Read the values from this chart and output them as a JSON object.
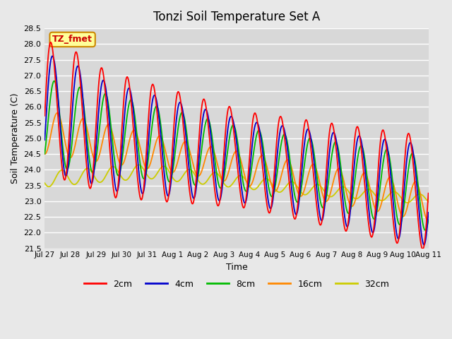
{
  "title": "Tonzi Soil Temperature Set A",
  "xlabel": "Time",
  "ylabel": "Soil Temperature (C)",
  "ylim": [
    21.5,
    28.5
  ],
  "background_color": "#e8e8e8",
  "plot_bg_color": "#d8d8d8",
  "grid_color": "#ffffff",
  "annotation_text": "TZ_fmet",
  "annotation_bg": "#ffff99",
  "annotation_border": "#cc8800",
  "annotation_text_color": "#cc0000",
  "legend_labels": [
    "2cm",
    "4cm",
    "8cm",
    "16cm",
    "32cm"
  ],
  "line_colors": [
    "#ff0000",
    "#0000cc",
    "#00bb00",
    "#ff8800",
    "#cccc00"
  ],
  "tick_labels": [
    "Jul 27",
    "Jul 28",
    "Jul 29",
    "Jul 30",
    "Jul 31",
    "Aug 1",
    "Aug 2",
    "Aug 3",
    "Aug 4",
    "Aug 5",
    "Aug 6",
    "Aug 7",
    "Aug 8",
    "Aug 9",
    "Aug 10",
    "Aug 11"
  ],
  "n_days": 15,
  "points_per_day": 48
}
